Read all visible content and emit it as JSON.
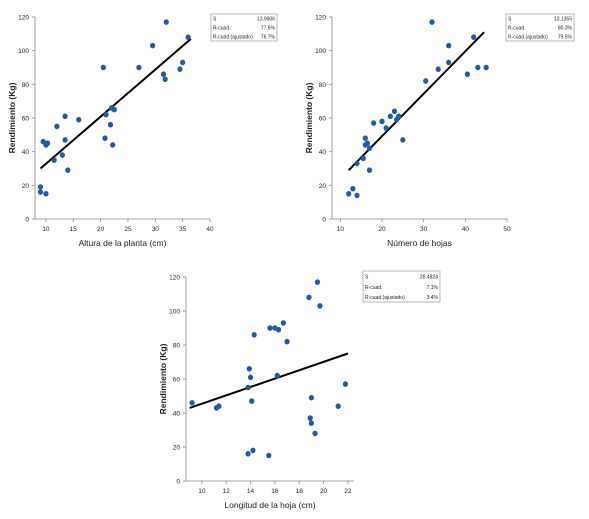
{
  "chart_data": [
    {
      "type": "scatter",
      "title": "",
      "xlabel": "Altura de la planta (cm)",
      "ylabel": "Rendimiento (Kg)",
      "xlim": [
        8,
        40
      ],
      "ylim": [
        0,
        120
      ],
      "xticks": [
        "10",
        "15",
        "20",
        "25",
        "30",
        "35",
        "40"
      ],
      "yticks": [
        "0",
        "20",
        "40",
        "60",
        "80",
        "100",
        "120"
      ],
      "grid": false,
      "legend": "none",
      "marker_color": "#1f5aa6",
      "line_color": "#000000",
      "x": [
        9.0,
        9.0,
        9.5,
        10.0,
        10.3,
        10.0,
        11.5,
        12.0,
        13.0,
        13.5,
        13.5,
        14.0,
        16.0,
        20.5,
        20.8,
        21.0,
        21.8,
        22.0,
        22.2,
        22.5,
        27.0,
        29.5,
        31.5,
        31.8,
        32.0,
        34.5,
        35.0,
        36.0
      ],
      "y": [
        16,
        19,
        46,
        44,
        45,
        15,
        35,
        55,
        38,
        47,
        61,
        29,
        59,
        90,
        48,
        62,
        56,
        66,
        44,
        65,
        90,
        103,
        86,
        83,
        117,
        89,
        93,
        108
      ],
      "fit_line": {
        "x": [
          9.0,
          36.5
        ],
        "y": [
          30.0,
          107.0
        ]
      },
      "stats": {
        "rows": [
          {
            "label": "S",
            "value": "13.9906"
          },
          {
            "label": "R-cuad.",
            "value": "77.6%"
          },
          {
            "label": "R-cuad.(ajustado)",
            "value": "76.7%"
          }
        ]
      }
    },
    {
      "type": "scatter",
      "title": "",
      "xlabel": "Número de hojas",
      "ylabel": "Rendimiento (Kg)",
      "xlim": [
        8,
        50
      ],
      "ylim": [
        0,
        120
      ],
      "xticks": [
        "10",
        "20",
        "30",
        "40",
        "50"
      ],
      "yticks": [
        "0",
        "20",
        "40",
        "60",
        "80",
        "100",
        "120"
      ],
      "grid": false,
      "legend": "none",
      "marker_color": "#1f5aa6",
      "line_color": "#000000",
      "x": [
        12.0,
        13.0,
        14.0,
        14.0,
        15.5,
        16.0,
        16.0,
        16.5,
        17.0,
        17.0,
        18.0,
        20.0,
        21.0,
        22.0,
        23.0,
        23.5,
        24.0,
        25.0,
        30.5,
        32.0,
        33.5,
        36.0,
        36.0,
        40.5,
        42.0,
        43.0,
        45.0
      ],
      "y": [
        15,
        18,
        33,
        14,
        36,
        44,
        48,
        45,
        29,
        42,
        57,
        58,
        54,
        61,
        64,
        59,
        61,
        47,
        82,
        117,
        89,
        103,
        93,
        86,
        108,
        90,
        90
      ],
      "fit_line": {
        "x": [
          12.0,
          44.5
        ],
        "y": [
          29.0,
          111.0
        ]
      },
      "stats": {
        "rows": [
          {
            "label": "S",
            "value": "13.1355"
          },
          {
            "label": "R-cuad.",
            "value": "80.3%"
          },
          {
            "label": "R-cuad.(ajustado)",
            "value": "79.5%"
          }
        ]
      }
    },
    {
      "type": "scatter",
      "title": "",
      "xlabel": "Longitud de la hoja (cm)",
      "ylabel": "Rendimiento (Kg)",
      "xlim": [
        8.7,
        22.5
      ],
      "ylim": [
        0,
        120
      ],
      "xticks": [
        "10",
        "12",
        "14",
        "16",
        "18",
        "20",
        "22"
      ],
      "yticks": [
        "0",
        "20",
        "40",
        "60",
        "80",
        "100",
        "120"
      ],
      "grid": false,
      "legend": "none",
      "marker_color": "#1f5aa6",
      "line_color": "#000000",
      "x": [
        9.2,
        11.2,
        11.4,
        13.8,
        13.8,
        13.9,
        14.0,
        14.1,
        14.2,
        14.3,
        15.5,
        15.6,
        16.0,
        16.2,
        16.3,
        16.7,
        17.0,
        18.8,
        18.9,
        19.0,
        19.0,
        19.3,
        19.5,
        19.7,
        21.2,
        21.8
      ],
      "y": [
        46,
        43,
        44,
        16,
        55,
        66,
        61,
        47,
        18,
        86,
        15,
        90,
        90,
        62,
        89,
        93,
        82,
        108,
        37,
        34,
        49,
        28,
        117,
        103,
        44,
        57
      ],
      "fit_line": {
        "x": [
          9.0,
          22.0
        ],
        "y": [
          43.0,
          75.0
        ]
      },
      "stats": {
        "rows": [
          {
            "label": "S",
            "value": "28.4824"
          },
          {
            "label": "R-cuad.",
            "value": "7.1%"
          },
          {
            "label": "R-cuad.(ajustado)",
            "value": "3.4%"
          }
        ]
      }
    }
  ]
}
